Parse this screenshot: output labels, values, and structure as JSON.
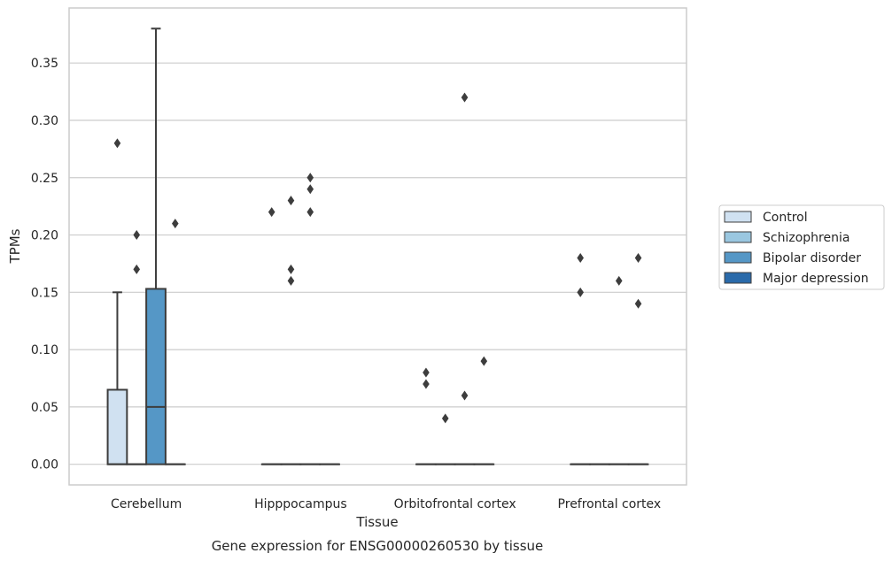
{
  "chart_data": {
    "type": "box",
    "title": "",
    "caption": "Gene expression for ENSG00000260530 by tissue",
    "xlabel": "Tissue",
    "ylabel": "TPMs",
    "ylim": [
      -0.018,
      0.398
    ],
    "yticks": [
      0.0,
      0.05,
      0.1,
      0.15,
      0.2,
      0.25,
      0.3,
      0.35
    ],
    "ytick_labels": [
      "0.00",
      "0.05",
      "0.10",
      "0.15",
      "0.20",
      "0.25",
      "0.30",
      "0.35"
    ],
    "grid": "y",
    "legend_position": "right",
    "categories": [
      "Cerebellum",
      "Hipppocampus",
      "Orbitofrontal cortex",
      "Prefrontal cortex"
    ],
    "series": [
      {
        "name": "Control",
        "color": "#d0e1f1",
        "boxes": [
          {
            "q1": 0.0,
            "median": 0.0,
            "q3": 0.065,
            "whisker_low": 0.0,
            "whisker_high": 0.15,
            "outliers": [
              0.28
            ]
          },
          {
            "q1": 0.0,
            "median": 0.0,
            "q3": 0.0,
            "whisker_low": 0.0,
            "whisker_high": 0.0,
            "outliers": [
              0.22
            ]
          },
          {
            "q1": 0.0,
            "median": 0.0,
            "q3": 0.0,
            "whisker_low": 0.0,
            "whisker_high": 0.0,
            "outliers": [
              0.08,
              0.07
            ]
          },
          {
            "q1": 0.0,
            "median": 0.0,
            "q3": 0.0,
            "whisker_low": 0.0,
            "whisker_high": 0.0,
            "outliers": [
              0.18,
              0.15
            ]
          }
        ]
      },
      {
        "name": "Schizophrenia",
        "color": "#9ac7e0",
        "boxes": [
          {
            "q1": 0.0,
            "median": 0.0,
            "q3": 0.0,
            "whisker_low": 0.0,
            "whisker_high": 0.0,
            "outliers": [
              0.2,
              0.17
            ]
          },
          {
            "q1": 0.0,
            "median": 0.0,
            "q3": 0.0,
            "whisker_low": 0.0,
            "whisker_high": 0.0,
            "outliers": [
              0.23,
              0.17,
              0.16
            ]
          },
          {
            "q1": 0.0,
            "median": 0.0,
            "q3": 0.0,
            "whisker_low": 0.0,
            "whisker_high": 0.0,
            "outliers": [
              0.04
            ]
          },
          {
            "q1": 0.0,
            "median": 0.0,
            "q3": 0.0,
            "whisker_low": 0.0,
            "whisker_high": 0.0,
            "outliers": []
          }
        ]
      },
      {
        "name": "Bipolar disorder",
        "color": "#5597c6",
        "boxes": [
          {
            "q1": 0.0,
            "median": 0.05,
            "q3": 0.153,
            "whisker_low": 0.0,
            "whisker_high": 0.38,
            "outliers": []
          },
          {
            "q1": 0.0,
            "median": 0.0,
            "q3": 0.0,
            "whisker_low": 0.0,
            "whisker_high": 0.0,
            "outliers": [
              0.25,
              0.24,
              0.22
            ]
          },
          {
            "q1": 0.0,
            "median": 0.0,
            "q3": 0.0,
            "whisker_low": 0.0,
            "whisker_high": 0.0,
            "outliers": [
              0.32,
              0.06
            ]
          },
          {
            "q1": 0.0,
            "median": 0.0,
            "q3": 0.0,
            "whisker_low": 0.0,
            "whisker_high": 0.0,
            "outliers": [
              0.16
            ]
          }
        ]
      },
      {
        "name": "Major depression",
        "color": "#2a6aaa",
        "boxes": [
          {
            "q1": 0.0,
            "median": 0.0,
            "q3": 0.0,
            "whisker_low": 0.0,
            "whisker_high": 0.0,
            "outliers": [
              0.21
            ]
          },
          {
            "q1": 0.0,
            "median": 0.0,
            "q3": 0.0,
            "whisker_low": 0.0,
            "whisker_high": 0.0,
            "outliers": []
          },
          {
            "q1": 0.0,
            "median": 0.0,
            "q3": 0.0,
            "whisker_low": 0.0,
            "whisker_high": 0.0,
            "outliers": [
              0.09
            ]
          },
          {
            "q1": 0.0,
            "median": 0.0,
            "q3": 0.0,
            "whisker_low": 0.0,
            "whisker_high": 0.0,
            "outliers": [
              0.18,
              0.14
            ]
          }
        ]
      }
    ]
  }
}
